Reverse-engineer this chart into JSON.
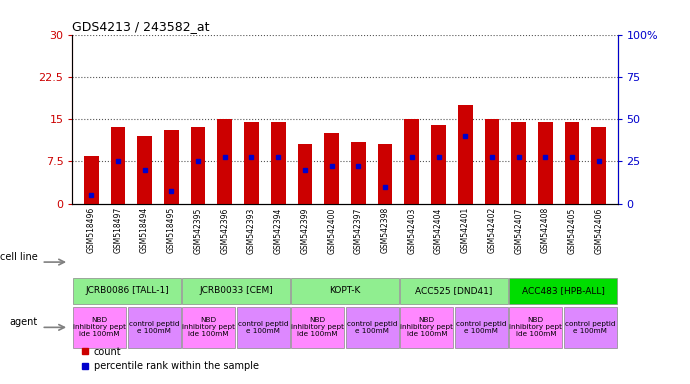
{
  "title": "GDS4213 / 243582_at",
  "samples": [
    "GSM518496",
    "GSM518497",
    "GSM518494",
    "GSM518495",
    "GSM542395",
    "GSM542396",
    "GSM542393",
    "GSM542394",
    "GSM542399",
    "GSM542400",
    "GSM542397",
    "GSM542398",
    "GSM542403",
    "GSM542404",
    "GSM542401",
    "GSM542402",
    "GSM542407",
    "GSM542408",
    "GSM542405",
    "GSM542406"
  ],
  "counts": [
    8.5,
    13.5,
    12.0,
    13.0,
    13.5,
    15.0,
    14.5,
    14.5,
    10.5,
    12.5,
    11.0,
    10.5,
    15.0,
    14.0,
    17.5,
    15.0,
    14.5,
    14.5,
    14.5,
    13.5
  ],
  "percentiles": [
    5.0,
    25.0,
    20.0,
    7.5,
    25.0,
    27.5,
    27.5,
    27.5,
    20.0,
    22.5,
    22.5,
    10.0,
    27.5,
    27.5,
    40.0,
    27.5,
    27.5,
    27.5,
    27.5,
    25.0
  ],
  "cell_lines": [
    {
      "label": "JCRB0086 [TALL-1]",
      "start": 0,
      "end": 4,
      "color": "#90EE90"
    },
    {
      "label": "JCRB0033 [CEM]",
      "start": 4,
      "end": 8,
      "color": "#90EE90"
    },
    {
      "label": "KOPT-K",
      "start": 8,
      "end": 12,
      "color": "#90EE90"
    },
    {
      "label": "ACC525 [DND41]",
      "start": 12,
      "end": 16,
      "color": "#90EE90"
    },
    {
      "label": "ACC483 [HPB-ALL]",
      "start": 16,
      "end": 20,
      "color": "#00DD00"
    }
  ],
  "agents": [
    {
      "label": "NBD\ninhibitory pept\nide 100mM",
      "start": 0,
      "end": 2,
      "color": "#FF88FF"
    },
    {
      "label": "control peptid\ne 100mM",
      "start": 2,
      "end": 4,
      "color": "#DD88FF"
    },
    {
      "label": "NBD\ninhibitory pept\nide 100mM",
      "start": 4,
      "end": 6,
      "color": "#FF88FF"
    },
    {
      "label": "control peptid\ne 100mM",
      "start": 6,
      "end": 8,
      "color": "#DD88FF"
    },
    {
      "label": "NBD\ninhibitory pept\nide 100mM",
      "start": 8,
      "end": 10,
      "color": "#FF88FF"
    },
    {
      "label": "control peptid\ne 100mM",
      "start": 10,
      "end": 12,
      "color": "#DD88FF"
    },
    {
      "label": "NBD\ninhibitory pept\nide 100mM",
      "start": 12,
      "end": 14,
      "color": "#FF88FF"
    },
    {
      "label": "control peptid\ne 100mM",
      "start": 14,
      "end": 16,
      "color": "#DD88FF"
    },
    {
      "label": "NBD\ninhibitory pept\nide 100mM",
      "start": 16,
      "end": 18,
      "color": "#FF88FF"
    },
    {
      "label": "control peptid\ne 100mM",
      "start": 18,
      "end": 20,
      "color": "#DD88FF"
    }
  ],
  "ylim_left": [
    0,
    30
  ],
  "ylim_right": [
    0,
    100
  ],
  "yticks_left": [
    0,
    7.5,
    15,
    22.5,
    30
  ],
  "yticks_right": [
    0,
    25,
    50,
    75,
    100
  ],
  "bar_color": "#CC0000",
  "percentile_color": "#0000CC",
  "dotted_line_color": "#555555",
  "background_color": "#FFFFFF",
  "axis_color_left": "#CC0000",
  "axis_color_right": "#0000CC",
  "xtick_bg_color": "#D0D0D0",
  "bar_width": 0.55
}
